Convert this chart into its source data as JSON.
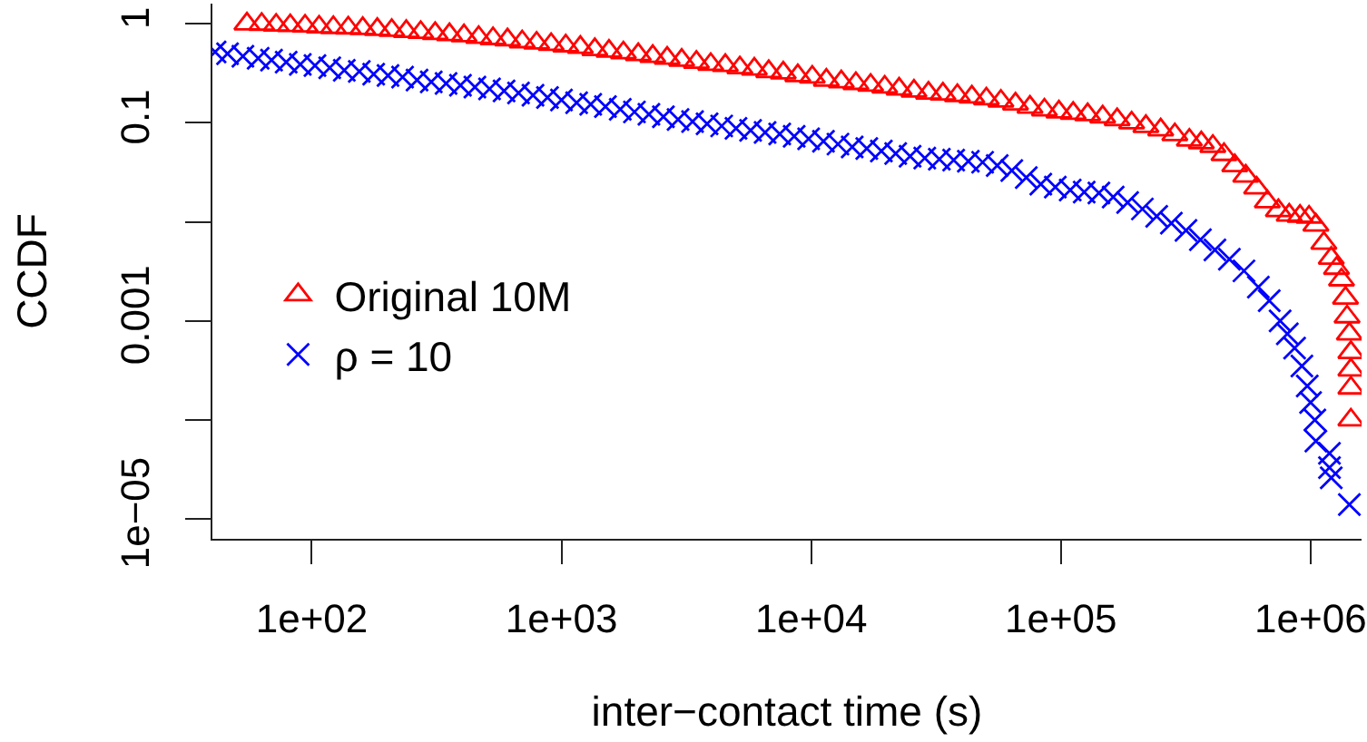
{
  "chart_data": {
    "type": "scatter",
    "xlabel": "inter−contact time (s)",
    "ylabel": "CCDF",
    "log": "xy",
    "xlim": [
      40,
      1600000.0
    ],
    "ylim": [
      6.3e-06,
      1.6
    ],
    "xticks": [
      {
        "value": 100,
        "label": "1e+02"
      },
      {
        "value": 1000,
        "label": "1e+03"
      },
      {
        "value": 10000,
        "label": "1e+04"
      },
      {
        "value": 100000,
        "label": "1e+05"
      },
      {
        "value": 1000000,
        "label": "1e+06"
      }
    ],
    "yticks": [
      1,
      0.1,
      {
        "value": 0.01,
        "label": null
      },
      0.001,
      {
        "value": 0.0001,
        "label": null
      },
      {
        "value": 1e-05,
        "label": "1e−05"
      }
    ],
    "legend": "left",
    "series": [
      {
        "name": "Original 10M",
        "color": "#ff0000",
        "marker": "triangle",
        "x": [
          55,
          63,
          72,
          82,
          94,
          107,
          122,
          140,
          160,
          183,
          209,
          239,
          273,
          312,
          356,
          407,
          466,
          532,
          608,
          696,
          795,
          909,
          1040,
          1190,
          1360,
          1550,
          1770,
          2030,
          2320,
          2650,
          3030,
          3470,
          3960,
          4530,
          5180,
          5920,
          6760,
          7730,
          8840,
          10100,
          11500,
          13200,
          15100,
          17300,
          19700,
          22500,
          25800,
          29500,
          33700,
          38500,
          44000,
          50300,
          57500,
          65800,
          75200,
          85900,
          98200,
          112000,
          128000,
          147000,
          168000,
          192000,
          219000,
          251000,
          286000,
          327000,
          365000,
          406000,
          450000,
          497000,
          550000,
          608000,
          671000,
          743000,
          821000,
          907000,
          986000,
          1050000,
          1130000,
          1210000,
          1270000,
          1330000,
          1380000,
          1400000,
          1430000,
          1450000,
          1450000,
          1450000,
          1450000
        ],
        "values": [
          1,
          0.99,
          0.97,
          0.96,
          0.95,
          0.93,
          0.92,
          0.91,
          0.9,
          0.88,
          0.86,
          0.84,
          0.82,
          0.8,
          0.78,
          0.76,
          0.73,
          0.71,
          0.69,
          0.66,
          0.64,
          0.62,
          0.6,
          0.58,
          0.55,
          0.53,
          0.51,
          0.49,
          0.47,
          0.45,
          0.43,
          0.41,
          0.39,
          0.38,
          0.36,
          0.35,
          0.33,
          0.32,
          0.3,
          0.29,
          0.27,
          0.26,
          0.25,
          0.24,
          0.23,
          0.22,
          0.21,
          0.2,
          0.196,
          0.189,
          0.183,
          0.175,
          0.166,
          0.155,
          0.144,
          0.135,
          0.129,
          0.125,
          0.121,
          0.115,
          0.108,
          0.1,
          0.092,
          0.085,
          0.076,
          0.067,
          0.063,
          0.058,
          0.048,
          0.037,
          0.029,
          0.022,
          0.016,
          0.013,
          0.0117,
          0.0114,
          0.0112,
          0.0093,
          0.0061,
          0.0043,
          0.0034,
          0.0026,
          0.0017,
          0.0011,
          0.00074,
          0.00048,
          0.00032,
          0.00021,
          0.0001
        ]
      },
      {
        "name": "ρ = 10",
        "color": "#0000ff",
        "marker": "cross",
        "x": [
          41,
          46,
          53,
          61,
          69,
          79,
          90,
          103,
          118,
          135,
          155,
          177,
          202,
          231,
          264,
          301,
          345,
          394,
          450,
          515,
          589,
          673,
          769,
          879,
          1000,
          1150,
          1310,
          1500,
          1720,
          1960,
          2240,
          2560,
          2930,
          3350,
          3830,
          4380,
          5000,
          5720,
          6540,
          7480,
          8550,
          9770,
          11200,
          12800,
          14600,
          16700,
          19100,
          21800,
          24900,
          28500,
          32600,
          37200,
          42600,
          48600,
          55600,
          63600,
          72700,
          83100,
          95000,
          109000,
          124000,
          142000,
          162000,
          185000,
          212000,
          242000,
          277000,
          317000,
          362000,
          414000,
          473000,
          541000,
          618000,
          683000,
          755000,
          807000,
          863000,
          923000,
          970000,
          1000000,
          1040000,
          1050000,
          1190000,
          1190000,
          1210000,
          1430000
        ],
        "values": [
          0.52,
          0.5,
          0.47,
          0.45,
          0.43,
          0.41,
          0.39,
          0.38,
          0.36,
          0.34,
          0.33,
          0.31,
          0.3,
          0.29,
          0.27,
          0.26,
          0.25,
          0.24,
          0.23,
          0.22,
          0.21,
          0.2,
          0.19,
          0.18,
          0.17,
          0.16,
          0.154,
          0.146,
          0.137,
          0.129,
          0.122,
          0.115,
          0.108,
          0.103,
          0.098,
          0.093,
          0.088,
          0.084,
          0.08,
          0.077,
          0.073,
          0.069,
          0.065,
          0.061,
          0.057,
          0.055,
          0.052,
          0.049,
          0.046,
          0.044,
          0.043,
          0.042,
          0.041,
          0.04,
          0.037,
          0.033,
          0.028,
          0.024,
          0.0225,
          0.021,
          0.02,
          0.0196,
          0.0178,
          0.0157,
          0.0135,
          0.0114,
          0.0097,
          0.0082,
          0.0066,
          0.0052,
          0.0042,
          0.0032,
          0.0022,
          0.0016,
          0.001,
          0.00074,
          0.00053,
          0.00035,
          0.00022,
          0.00015,
          0.0001,
          6.1e-05,
          4.6e-05,
          3.3e-05,
          2.6e-05,
          1.4e-05
        ]
      }
    ]
  }
}
